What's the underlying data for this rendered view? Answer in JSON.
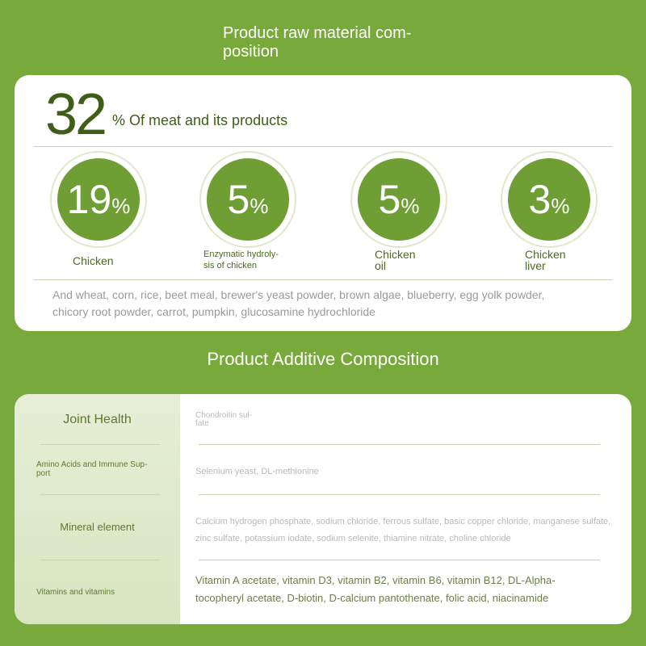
{
  "header": {
    "title": [
      "Product raw material com-",
      "position"
    ]
  },
  "raw_material": {
    "headline_value": 32,
    "headline_text": "% Of meat and its products",
    "unit": "%",
    "items": [
      {
        "value": 19,
        "label": [
          "Chicken"
        ]
      },
      {
        "value": 5,
        "label": [
          "Enzymatic hydroly-",
          "sis of chicken"
        ]
      },
      {
        "value": 5,
        "label": [
          "Chicken",
          "oil"
        ]
      },
      {
        "value": 3,
        "label": [
          "Chicken",
          "liver"
        ]
      }
    ],
    "others": [
      "And wheat, corn, rice, beet meal, brewer's yeast powder, brown algae, blueberry, egg yolk powder,",
      "chicory root powder, carrot, pumpkin, glucosamine hydrochloride"
    ]
  },
  "additives": {
    "title": "Product Additive Composition",
    "rows": [
      {
        "category": [
          "Joint Health"
        ],
        "ingredients": [
          "Chondroitin sul-",
          "fate"
        ]
      },
      {
        "category": [
          "Amino Acids and Immune Sup-",
          "port"
        ],
        "ingredients": [
          "Selenium yeast, DL-methionine"
        ]
      },
      {
        "category": [
          "Mineral element"
        ],
        "ingredients": [
          "Calcium hydrogen phosphate, sodium chloride, ferrous sulfate, basic copper chloride, manganese sulfate,",
          "zinc sulfate, potassium iodate, sodium selenite, thiamine nitrate, choline chloride"
        ]
      },
      {
        "category": [
          "Vitamins and vitamins"
        ],
        "ingredients": [
          "Vitamin A acetate, vitamin D3, vitamin B2, vitamin B6, vitamin B12, DL-Alpha-",
          "tocopheryl acetate, D-biotin, D-calcium pantothenate, folic acid, niacinamide"
        ]
      }
    ]
  }
}
